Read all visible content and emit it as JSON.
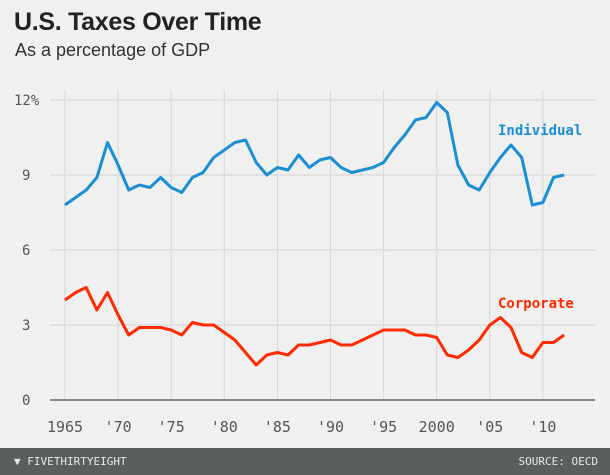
{
  "chart_data": {
    "type": "line",
    "title": "U.S. Taxes Over Time",
    "subtitle": "As a percentage of GDP",
    "x": [
      1965,
      1966,
      1967,
      1968,
      1969,
      1970,
      1971,
      1972,
      1973,
      1974,
      1975,
      1976,
      1977,
      1978,
      1979,
      1980,
      1981,
      1982,
      1983,
      1984,
      1985,
      1986,
      1987,
      1988,
      1989,
      1990,
      1991,
      1992,
      1993,
      1994,
      1995,
      1996,
      1997,
      1998,
      1999,
      2000,
      2001,
      2002,
      2003,
      2004,
      2005,
      2006,
      2007,
      2008,
      2009,
      2010,
      2011,
      2012
    ],
    "series": [
      {
        "name": "Individual",
        "color": "#1a8fd4",
        "values": [
          7.8,
          8.1,
          8.4,
          8.9,
          10.3,
          9.4,
          8.4,
          8.6,
          8.5,
          8.9,
          8.5,
          8.3,
          8.9,
          9.1,
          9.7,
          10.0,
          10.3,
          10.4,
          9.5,
          9.0,
          9.3,
          9.2,
          9.8,
          9.3,
          9.6,
          9.7,
          9.3,
          9.1,
          9.2,
          9.3,
          9.5,
          10.1,
          10.6,
          11.2,
          11.3,
          11.9,
          11.5,
          9.4,
          8.6,
          8.4,
          9.1,
          9.7,
          10.2,
          9.7,
          7.8,
          7.9,
          8.9,
          9.0
        ]
      },
      {
        "name": "Corporate",
        "color": "#ff2a00",
        "values": [
          4.0,
          4.3,
          4.5,
          3.6,
          4.3,
          3.4,
          2.6,
          2.9,
          2.9,
          2.9,
          2.8,
          2.6,
          3.1,
          3.0,
          3.0,
          2.7,
          2.4,
          1.9,
          1.4,
          1.8,
          1.9,
          1.8,
          2.2,
          2.2,
          2.3,
          2.4,
          2.2,
          2.2,
          2.4,
          2.6,
          2.8,
          2.8,
          2.8,
          2.6,
          2.6,
          2.5,
          1.8,
          1.7,
          2.0,
          2.4,
          3.0,
          3.3,
          2.9,
          1.9,
          1.7,
          2.3,
          2.3,
          2.6
        ]
      }
    ],
    "xticks": [
      1965,
      1970,
      1975,
      1980,
      1985,
      1990,
      1995,
      2000,
      2005,
      2010
    ],
    "xtick_labels": [
      "1965",
      "'70",
      "'75",
      "'80",
      "'85",
      "'90",
      "'95",
      "2000",
      "'05",
      "'10"
    ],
    "yticks": [
      0,
      3,
      6,
      9,
      12
    ],
    "ytick_labels": [
      "0",
      "3",
      "6",
      "9",
      "12%"
    ],
    "ylim": [
      0,
      12
    ],
    "xlim": [
      1965,
      2012
    ],
    "grid": true,
    "legend": "inline labels at right"
  },
  "footer": {
    "brand": "FIVETHIRTYEIGHT",
    "source": "SOURCE: OECD"
  }
}
